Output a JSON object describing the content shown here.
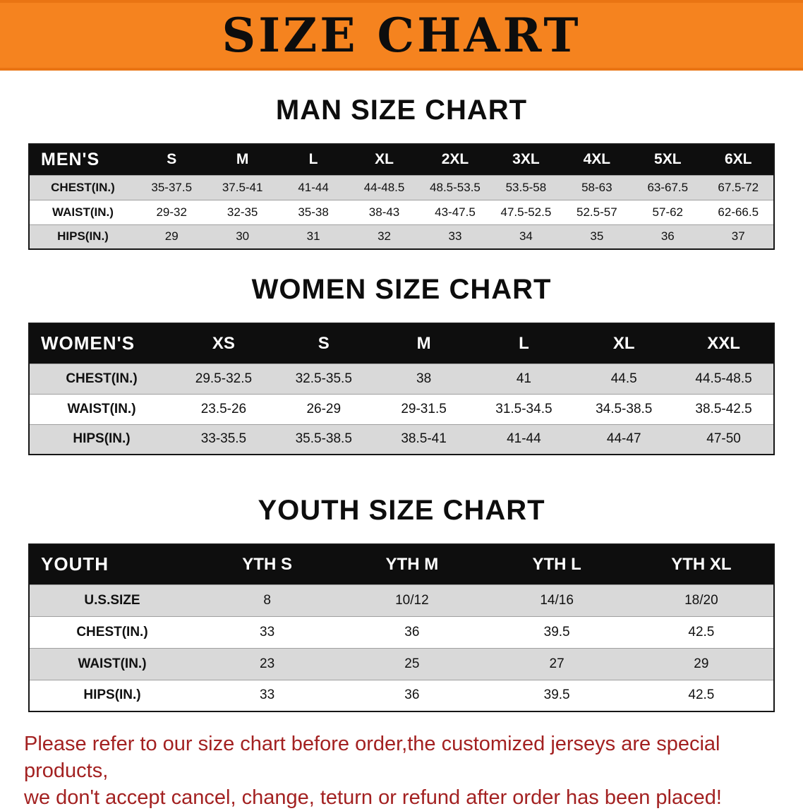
{
  "banner": {
    "title": "SIZE CHART"
  },
  "colors": {
    "banner_bg": "#f5831f",
    "table_header_bg": "#0e0e0e",
    "row_alt_bg": "#d9d9d9",
    "notice_text": "#a32121"
  },
  "chart_data": [
    {
      "type": "table",
      "title": "MAN SIZE CHART",
      "columns": [
        "MEN'S",
        "S",
        "M",
        "L",
        "XL",
        "2XL",
        "3XL",
        "4XL",
        "5XL",
        "6XL"
      ],
      "rows": [
        [
          "CHEST(IN.)",
          "35-37.5",
          "37.5-41",
          "41-44",
          "44-48.5",
          "48.5-53.5",
          "53.5-58",
          "58-63",
          "63-67.5",
          "67.5-72"
        ],
        [
          "WAIST(IN.)",
          "29-32",
          "32-35",
          "35-38",
          "38-43",
          "43-47.5",
          "47.5-52.5",
          "52.5-57",
          "57-62",
          "62-66.5"
        ],
        [
          "HIPS(IN.)",
          "29",
          "30",
          "31",
          "32",
          "33",
          "34",
          "35",
          "36",
          "37"
        ]
      ]
    },
    {
      "type": "table",
      "title": "WOMEN SIZE CHART",
      "columns": [
        "WOMEN'S",
        "XS",
        "S",
        "M",
        "L",
        "XL",
        "XXL"
      ],
      "rows": [
        [
          "CHEST(IN.)",
          "29.5-32.5",
          "32.5-35.5",
          "38",
          "41",
          "44.5",
          "44.5-48.5"
        ],
        [
          "WAIST(IN.)",
          "23.5-26",
          "26-29",
          "29-31.5",
          "31.5-34.5",
          "34.5-38.5",
          "38.5-42.5"
        ],
        [
          "HIPS(IN.)",
          "33-35.5",
          "35.5-38.5",
          "38.5-41",
          "41-44",
          "44-47",
          "47-50"
        ]
      ]
    },
    {
      "type": "table",
      "title": "YOUTH SIZE CHART",
      "columns": [
        "YOUTH",
        "YTH S",
        "YTH M",
        "YTH L",
        "YTH XL"
      ],
      "rows": [
        [
          "U.S.SIZE",
          "8",
          "10/12",
          "14/16",
          "18/20"
        ],
        [
          "CHEST(IN.)",
          "33",
          "36",
          "39.5",
          "42.5"
        ],
        [
          "WAIST(IN.)",
          "23",
          "25",
          "27",
          "29"
        ],
        [
          "HIPS(IN.)",
          "33",
          "36",
          "39.5",
          "42.5"
        ]
      ]
    }
  ],
  "footer": {
    "line1": "Please refer to our size chart before order,the customized jerseys are special products,",
    "line2": "we don't accept cancel, change, teturn or refund after order has been placed!"
  }
}
